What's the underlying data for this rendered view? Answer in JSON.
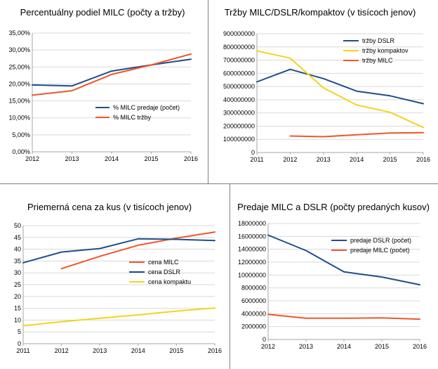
{
  "colors": {
    "blue": "#1f4e8c",
    "orange": "#f0562a",
    "yellow": "#f4d31b",
    "grid": "#d9d9d9",
    "axis": "#a6a6a6",
    "divider": "#7f7f7f"
  },
  "chart_data": [
    {
      "type": "line",
      "title": "Percentuálny podiel MILC (počty a tržby)",
      "x": [
        2012,
        2013,
        2014,
        2015,
        2016
      ],
      "x_tick_labels": [
        "2012",
        "2013",
        "2014",
        "2015",
        "2016"
      ],
      "ylim": [
        0,
        35
      ],
      "y_ticks": [
        0,
        5,
        10,
        15,
        20,
        25,
        30,
        35
      ],
      "y_tick_labels": [
        "0,00%",
        "5,00%",
        "10,00%",
        "15,00%",
        "20,00%",
        "25,00%",
        "30,00%",
        "35,00%"
      ],
      "grid": true,
      "legend_position": "middle-right",
      "series": [
        {
          "name": "% MILC predaje (počet)",
          "color_key": "blue",
          "x": [
            2012,
            2013,
            2014,
            2015,
            2016
          ],
          "values": [
            19.7,
            19.4,
            23.8,
            25.6,
            27.3
          ]
        },
        {
          "name": "% MILC tržby",
          "color_key": "orange",
          "x": [
            2012,
            2013,
            2014,
            2015,
            2016
          ],
          "values": [
            16.7,
            18.0,
            22.8,
            25.6,
            28.8
          ]
        }
      ]
    },
    {
      "type": "line",
      "title": "Tržby MILC/DSLR/kompaktov (v tisícoch jenov)",
      "x": [
        2011,
        2012,
        2013,
        2014,
        2015,
        2016
      ],
      "x_tick_labels": [
        "2011",
        "2012",
        "2013",
        "2014",
        "2015",
        "2016"
      ],
      "ylim": [
        0,
        900000000
      ],
      "y_ticks": [
        0,
        100000000,
        200000000,
        300000000,
        400000000,
        500000000,
        600000000,
        700000000,
        800000000,
        900000000
      ],
      "y_tick_labels": [
        "0",
        "100000000",
        "200000000",
        "300000000",
        "400000000",
        "500000000",
        "600000000",
        "700000000",
        "800000000",
        "900000000"
      ],
      "grid": true,
      "legend_position": "top-right",
      "series": [
        {
          "name": "tržby DSLR",
          "color_key": "blue",
          "x": [
            2011,
            2012,
            2013,
            2014,
            2015,
            2016
          ],
          "values": [
            535000000,
            630000000,
            560000000,
            465000000,
            430000000,
            370000000
          ]
        },
        {
          "name": "tržby kompaktov",
          "color_key": "yellow",
          "x": [
            2011,
            2012,
            2013,
            2014,
            2015,
            2016
          ],
          "values": [
            770000000,
            715000000,
            490000000,
            360000000,
            305000000,
            190000000
          ]
        },
        {
          "name": "tržby MILC",
          "color_key": "orange",
          "x": [
            2012,
            2013,
            2014,
            2015,
            2016
          ],
          "values": [
            125000000,
            120000000,
            135000000,
            148000000,
            150000000
          ]
        }
      ]
    },
    {
      "type": "line",
      "title": "Priemerná cena za kus (v tisícoch jenov)",
      "x": [
        2011,
        2012,
        2013,
        2014,
        2015,
        2016
      ],
      "x_tick_labels": [
        "2011",
        "2012",
        "2013",
        "2014",
        "2015",
        "2016"
      ],
      "ylim": [
        0,
        50
      ],
      "y_ticks": [
        0,
        5,
        10,
        15,
        20,
        25,
        30,
        35,
        40,
        45,
        50
      ],
      "y_tick_labels": [
        "0",
        "5",
        "10",
        "15",
        "20",
        "25",
        "30",
        "35",
        "40",
        "45",
        "50"
      ],
      "grid": true,
      "legend_position": "middle-right",
      "series": [
        {
          "name": "cena MILC",
          "color_key": "orange",
          "x": [
            2012,
            2013,
            2014,
            2015,
            2016
          ],
          "values": [
            31.8,
            37.0,
            41.7,
            44.7,
            47.3
          ]
        },
        {
          "name": "cena DSLR",
          "color_key": "blue",
          "x": [
            2011,
            2012,
            2013,
            2014,
            2015,
            2016
          ],
          "values": [
            34.3,
            38.8,
            40.3,
            44.4,
            44.2,
            43.7
          ]
        },
        {
          "name": "cena kompaktu",
          "color_key": "yellow",
          "x": [
            2011,
            2012,
            2013,
            2014,
            2015,
            2016
          ],
          "values": [
            7.6,
            9.3,
            10.8,
            12.2,
            13.8,
            15.1
          ]
        }
      ]
    },
    {
      "type": "line",
      "title": "Predaje MILC a DSLR (počty predaných kusov)",
      "x": [
        2012,
        2013,
        2014,
        2015,
        2016
      ],
      "x_tick_labels": [
        "2012",
        "2013",
        "2014",
        "2015",
        "2016"
      ],
      "ylim": [
        0,
        18000000
      ],
      "y_ticks": [
        0,
        2000000,
        4000000,
        6000000,
        8000000,
        10000000,
        12000000,
        14000000,
        16000000,
        18000000
      ],
      "y_tick_labels": [
        "0",
        "2000000",
        "4000000",
        "6000000",
        "8000000",
        "10000000",
        "12000000",
        "14000000",
        "16000000",
        "18000000"
      ],
      "grid": true,
      "legend_position": "top-right",
      "series": [
        {
          "name": "predaje DSLR (počet)",
          "color_key": "blue",
          "x": [
            2012,
            2013,
            2014,
            2015,
            2016
          ],
          "values": [
            16200000,
            13800000,
            10500000,
            9700000,
            8500000
          ]
        },
        {
          "name": "predaje MILC (počet)",
          "color_key": "orange",
          "x": [
            2012,
            2013,
            2014,
            2015,
            2016
          ],
          "values": [
            3900000,
            3300000,
            3300000,
            3350000,
            3150000
          ]
        }
      ]
    }
  ]
}
